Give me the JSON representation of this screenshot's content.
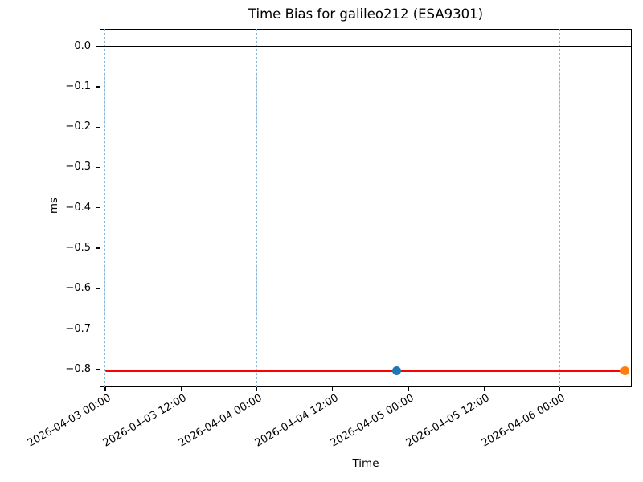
{
  "chart_data": {
    "type": "line",
    "title": "Time Bias for galileo212 (ESA9301)",
    "xlabel": "Time",
    "ylabel": "ms",
    "x_epoch": "2026-04-03 00:00",
    "x_ticks": [
      {
        "label": "2026-04-03 00:00",
        "hours": 0
      },
      {
        "label": "2026-04-03 12:00",
        "hours": 12
      },
      {
        "label": "2026-04-04 00:00",
        "hours": 24
      },
      {
        "label": "2026-04-04 12:00",
        "hours": 36
      },
      {
        "label": "2026-04-05 00:00",
        "hours": 48
      },
      {
        "label": "2026-04-05 12:00",
        "hours": 60
      },
      {
        "label": "2026-04-06 00:00",
        "hours": 72
      }
    ],
    "y_ticks": [
      {
        "label": "0.0",
        "value": 0.0
      },
      {
        "label": "−0.1",
        "value": -0.1
      },
      {
        "label": "−0.2",
        "value": -0.2
      },
      {
        "label": "−0.3",
        "value": -0.3
      },
      {
        "label": "−0.4",
        "value": -0.4
      },
      {
        "label": "−0.5",
        "value": -0.5
      },
      {
        "label": "−0.6",
        "value": -0.6
      },
      {
        "label": "−0.7",
        "value": -0.7
      },
      {
        "label": "−0.8",
        "value": -0.8
      }
    ],
    "grid_hours": [
      0,
      24,
      48,
      72
    ],
    "grid_on": true,
    "grid_color": "#86b5d9",
    "legend": null,
    "xlim_hours": [
      -0.9,
      83.4
    ],
    "ylim_ms": [
      -0.844,
      0.043
    ],
    "zero_line_ms": 0.0,
    "series": [
      {
        "name": "time-bias-line",
        "type": "line",
        "color": "#ff0000",
        "x_hours": [
          0,
          82.3
        ],
        "values_ms": [
          -0.8025,
          -0.8025
        ]
      },
      {
        "name": "observed-epoch-point",
        "type": "point",
        "color": "#1f77b4",
        "x_hours": 46.2,
        "time_estimate": "2026-04-04 22:10",
        "value_ms": -0.8025
      },
      {
        "name": "extrapolated-epoch-point",
        "type": "point",
        "color": "#ff7f0e",
        "x_hours": 82.3,
        "time_estimate": "2026-04-06 10:15",
        "value_ms": -0.8025
      }
    ]
  }
}
